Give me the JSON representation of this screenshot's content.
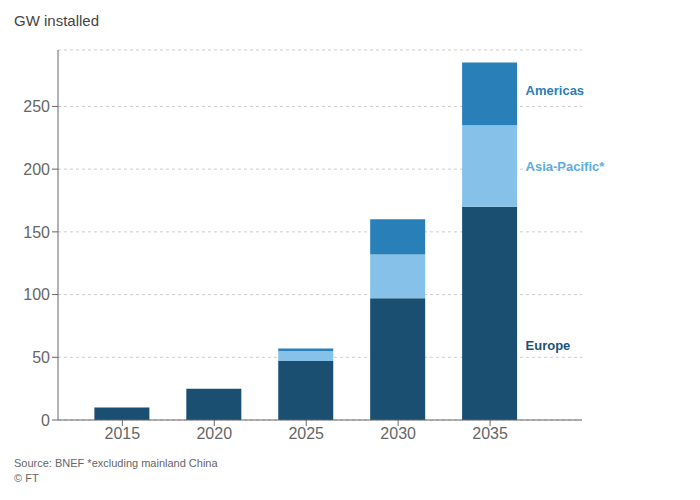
{
  "chart_data": {
    "type": "bar",
    "title": "GW installed",
    "stacked": true,
    "grid": true,
    "x": [
      2015,
      2020,
      2025,
      2030,
      2035
    ],
    "series": [
      {
        "name": "Europe",
        "color": "#1b4f72",
        "values": [
          10,
          25,
          47,
          97,
          170
        ]
      },
      {
        "name": "Asia-Pacific*",
        "color": "#85c1e9",
        "values": [
          0,
          0,
          8,
          35,
          65
        ]
      },
      {
        "name": "Americas",
        "color": "#2980b9",
        "values": [
          0,
          0,
          2,
          28,
          50
        ]
      }
    ],
    "annotations": [
      {
        "text": "Europe",
        "color": "#1a5276"
      },
      {
        "text": "Asia-Pacific*",
        "color": "#5dade2"
      },
      {
        "text": "Americas",
        "color": "#2980b9"
      }
    ],
    "source": "Source: BNEF *excluding mainland China\n© FT",
    "xlim": [
      2011.5,
      2040
    ],
    "ylim": [
      0,
      295
    ],
    "xticks": [
      2015,
      2020,
      2025,
      2030,
      2035
    ],
    "yticks": [
      0,
      50,
      100,
      150,
      200,
      250
    ]
  }
}
